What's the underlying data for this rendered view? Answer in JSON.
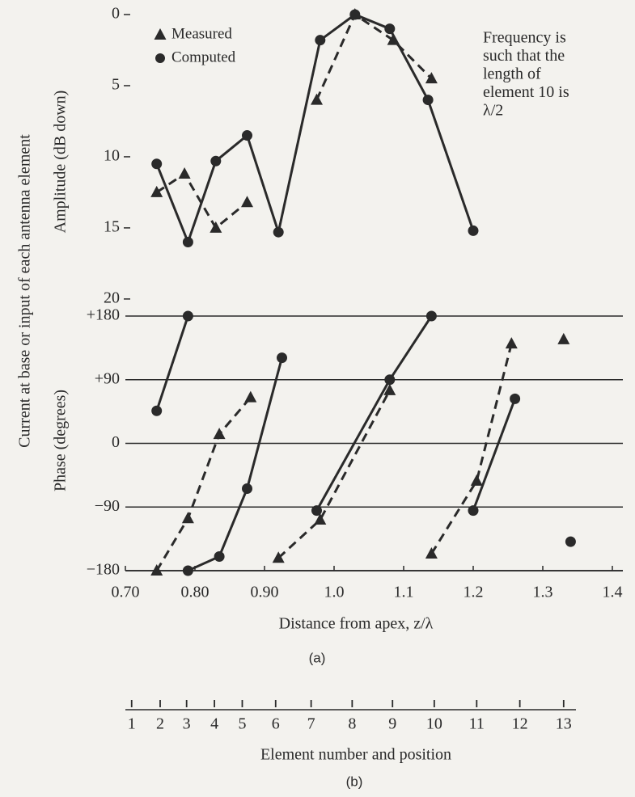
{
  "chart_data": [
    {
      "type": "line",
      "ylabel": "Amplitude (dB down)",
      "ylim": [
        0,
        21.2
      ],
      "yticks": [
        0,
        5,
        10,
        15,
        20
      ],
      "invert_y": true,
      "xlim": [
        0.7,
        1.4
      ],
      "legend": "upper left",
      "series": [
        {
          "name": "Measured",
          "color": "#2a2a2a",
          "marker": "triangle",
          "dash": true,
          "x": [
            0.745,
            0.785,
            0.83,
            0.875,
            0.92,
            0.975,
            1.03,
            1.085,
            1.14,
            1.24
          ],
          "values": [
            12.5,
            11.2,
            15,
            13.2,
            null,
            6,
            0,
            1.8,
            4.5,
            null
          ]
        },
        {
          "name": "Computed",
          "color": "#2a2a2a",
          "marker": "circle",
          "dash": false,
          "x": [
            0.745,
            0.79,
            0.83,
            0.875,
            0.92,
            0.98,
            1.03,
            1.08,
            1.135,
            1.2
          ],
          "values": [
            10.5,
            16,
            10.3,
            8.5,
            15.3,
            1.8,
            0,
            1,
            6,
            15.2
          ]
        }
      ],
      "annotation": [
        "Frequency is",
        "such that the",
        "length of",
        "element 10 is",
        "λ/2"
      ]
    },
    {
      "type": "line",
      "ylabel": "Phase (degrees)",
      "ylim": [
        -180,
        180
      ],
      "yticks": [
        {
          "value": 180,
          "label": "+180"
        },
        {
          "value": 90,
          "label": "+90"
        },
        0,
        {
          "value": -90,
          "label": "−90"
        },
        {
          "value": -180,
          "label": "−180"
        }
      ],
      "grid": true,
      "xlim": [
        0.7,
        1.4
      ],
      "xticks": [
        {
          "value": 0.7,
          "label": "0.70"
        },
        {
          "value": 0.8,
          "label": "0.80"
        },
        {
          "value": 0.9,
          "label": "0.90"
        },
        {
          "value": 1,
          "label": "1.0"
        },
        1.1,
        1.2,
        1.3,
        1.4
      ],
      "xlabel": "Distance from apex, z/λ",
      "caption": "(a)",
      "series": [
        {
          "color": "#2a2a2a",
          "marker": "triangle",
          "dash": true,
          "x": [
            0.745,
            0.79,
            0.835,
            0.88,
            null,
            0.92,
            0.98,
            1.08,
            null,
            1.14,
            1.205,
            1.255,
            null,
            1.33
          ],
          "values": [
            -180,
            -106,
            13,
            65,
            null,
            -162,
            -108,
            75,
            null,
            -156,
            -53,
            141,
            null,
            147
          ]
        },
        {
          "color": "#2a2a2a",
          "marker": "circle",
          "dash": false,
          "x": [
            0.745,
            0.79,
            null,
            0.79,
            0.835,
            0.875,
            0.925,
            null,
            0.975,
            1.08,
            1.14,
            null,
            1.2,
            1.26,
            null,
            1.34
          ],
          "values": [
            46,
            180,
            null,
            -180,
            -160,
            -64,
            121,
            null,
            -95,
            90,
            180,
            null,
            -95,
            63,
            null,
            -139
          ]
        }
      ]
    }
  ],
  "ylabel": "Current at base or input of each antenna element",
  "element_scale": {
    "positions": [
      0.709,
      0.75,
      0.788,
      0.828,
      0.868,
      0.916,
      0.967,
      1.026,
      1.084,
      1.144,
      1.205,
      1.267,
      1.33
    ],
    "labels": [
      1,
      2,
      3,
      4,
      5,
      6,
      7,
      8,
      9,
      10,
      11,
      12,
      13
    ],
    "xlabel": "Element number and position",
    "caption": "(b)"
  }
}
